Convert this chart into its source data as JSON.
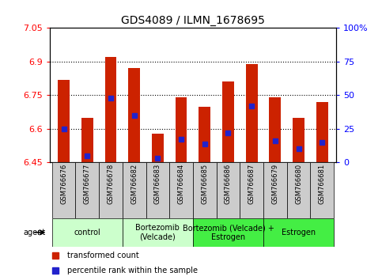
{
  "title": "GDS4089 / ILMN_1678695",
  "samples": [
    "GSM766676",
    "GSM766677",
    "GSM766678",
    "GSM766682",
    "GSM766683",
    "GSM766684",
    "GSM766685",
    "GSM766686",
    "GSM766687",
    "GSM766679",
    "GSM766680",
    "GSM766681"
  ],
  "bar_values": [
    6.82,
    6.65,
    6.92,
    6.87,
    6.58,
    6.74,
    6.7,
    6.81,
    6.89,
    6.74,
    6.65,
    6.72
  ],
  "percentile_values": [
    25,
    5,
    48,
    35,
    3,
    17,
    14,
    22,
    42,
    16,
    10,
    15
  ],
  "ymin": 6.45,
  "ymax": 7.05,
  "yticks": [
    6.45,
    6.6,
    6.75,
    6.9,
    7.05
  ],
  "ytick_labels": [
    "6.45",
    "6.6",
    "6.75",
    "6.9",
    "7.05"
  ],
  "right_yticks": [
    0,
    25,
    50,
    75,
    100
  ],
  "right_ytick_labels": [
    "0",
    "25",
    "50",
    "75",
    "100%"
  ],
  "bar_color": "#cc2200",
  "dot_color": "#2222cc",
  "bar_width": 0.5,
  "agent_label": "agent",
  "legend_red": "transformed count",
  "legend_blue": "percentile rank within the sample",
  "group_defs": [
    {
      "label": "control",
      "start": 0,
      "end": 2,
      "color": "#ccffcc"
    },
    {
      "label": "Bortezomib\n(Velcade)",
      "start": 3,
      "end": 5,
      "color": "#ccffcc"
    },
    {
      "label": "Bortezomib (Velcade) +\nEstrogen",
      "start": 6,
      "end": 8,
      "color": "#44ee44"
    },
    {
      "label": "Estrogen",
      "start": 9,
      "end": 11,
      "color": "#44ee44"
    }
  ],
  "sample_bg_color": "#cccccc",
  "dotted_lines": [
    6.6,
    6.75,
    6.9
  ]
}
